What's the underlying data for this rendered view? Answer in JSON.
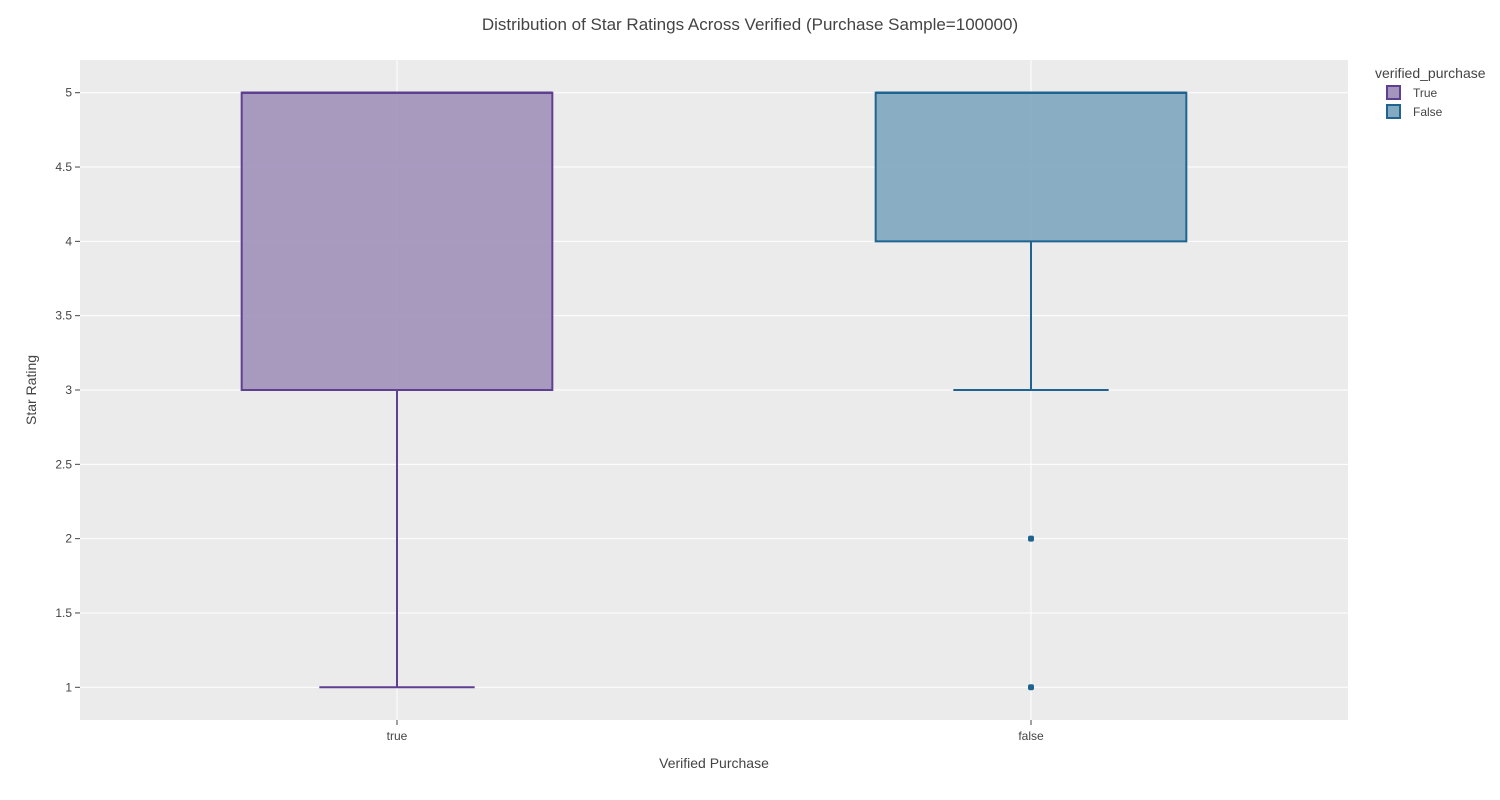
{
  "chart_data": {
    "type": "box",
    "title": "Distribution of Star Ratings Across Verified (Purchase Sample=100000)",
    "xlabel": "Verified Purchase",
    "ylabel": "Star Rating",
    "categories": [
      "true",
      "false"
    ],
    "ylim": [
      0.78,
      5.22
    ],
    "yticks": [
      1,
      1.5,
      2,
      2.5,
      3,
      3.5,
      4,
      4.5,
      5
    ],
    "ytick_labels": [
      "1",
      "1.5",
      "2",
      "2.5",
      "3",
      "3.5",
      "4",
      "4.5",
      "5"
    ],
    "grid": true,
    "legend": {
      "title": "verified_purchase",
      "placement": "top-right",
      "entries": [
        "True",
        "False"
      ]
    },
    "series": [
      {
        "name": "True",
        "category": "true",
        "color": "#5e3f90",
        "fill": "#a495bd",
        "q1": 3,
        "median": 5,
        "q3": 5,
        "whisker_low": 1,
        "whisker_high": 5,
        "outliers": []
      },
      {
        "name": "False",
        "category": "false",
        "color": "#1f6491",
        "fill": "#84aac1",
        "q1": 4,
        "median": 5,
        "q3": 5,
        "whisker_low": 3,
        "whisker_high": 5,
        "outliers": [
          2,
          1
        ]
      }
    ],
    "plot_background": "#ebebeb",
    "grid_color": "#ffffff"
  }
}
